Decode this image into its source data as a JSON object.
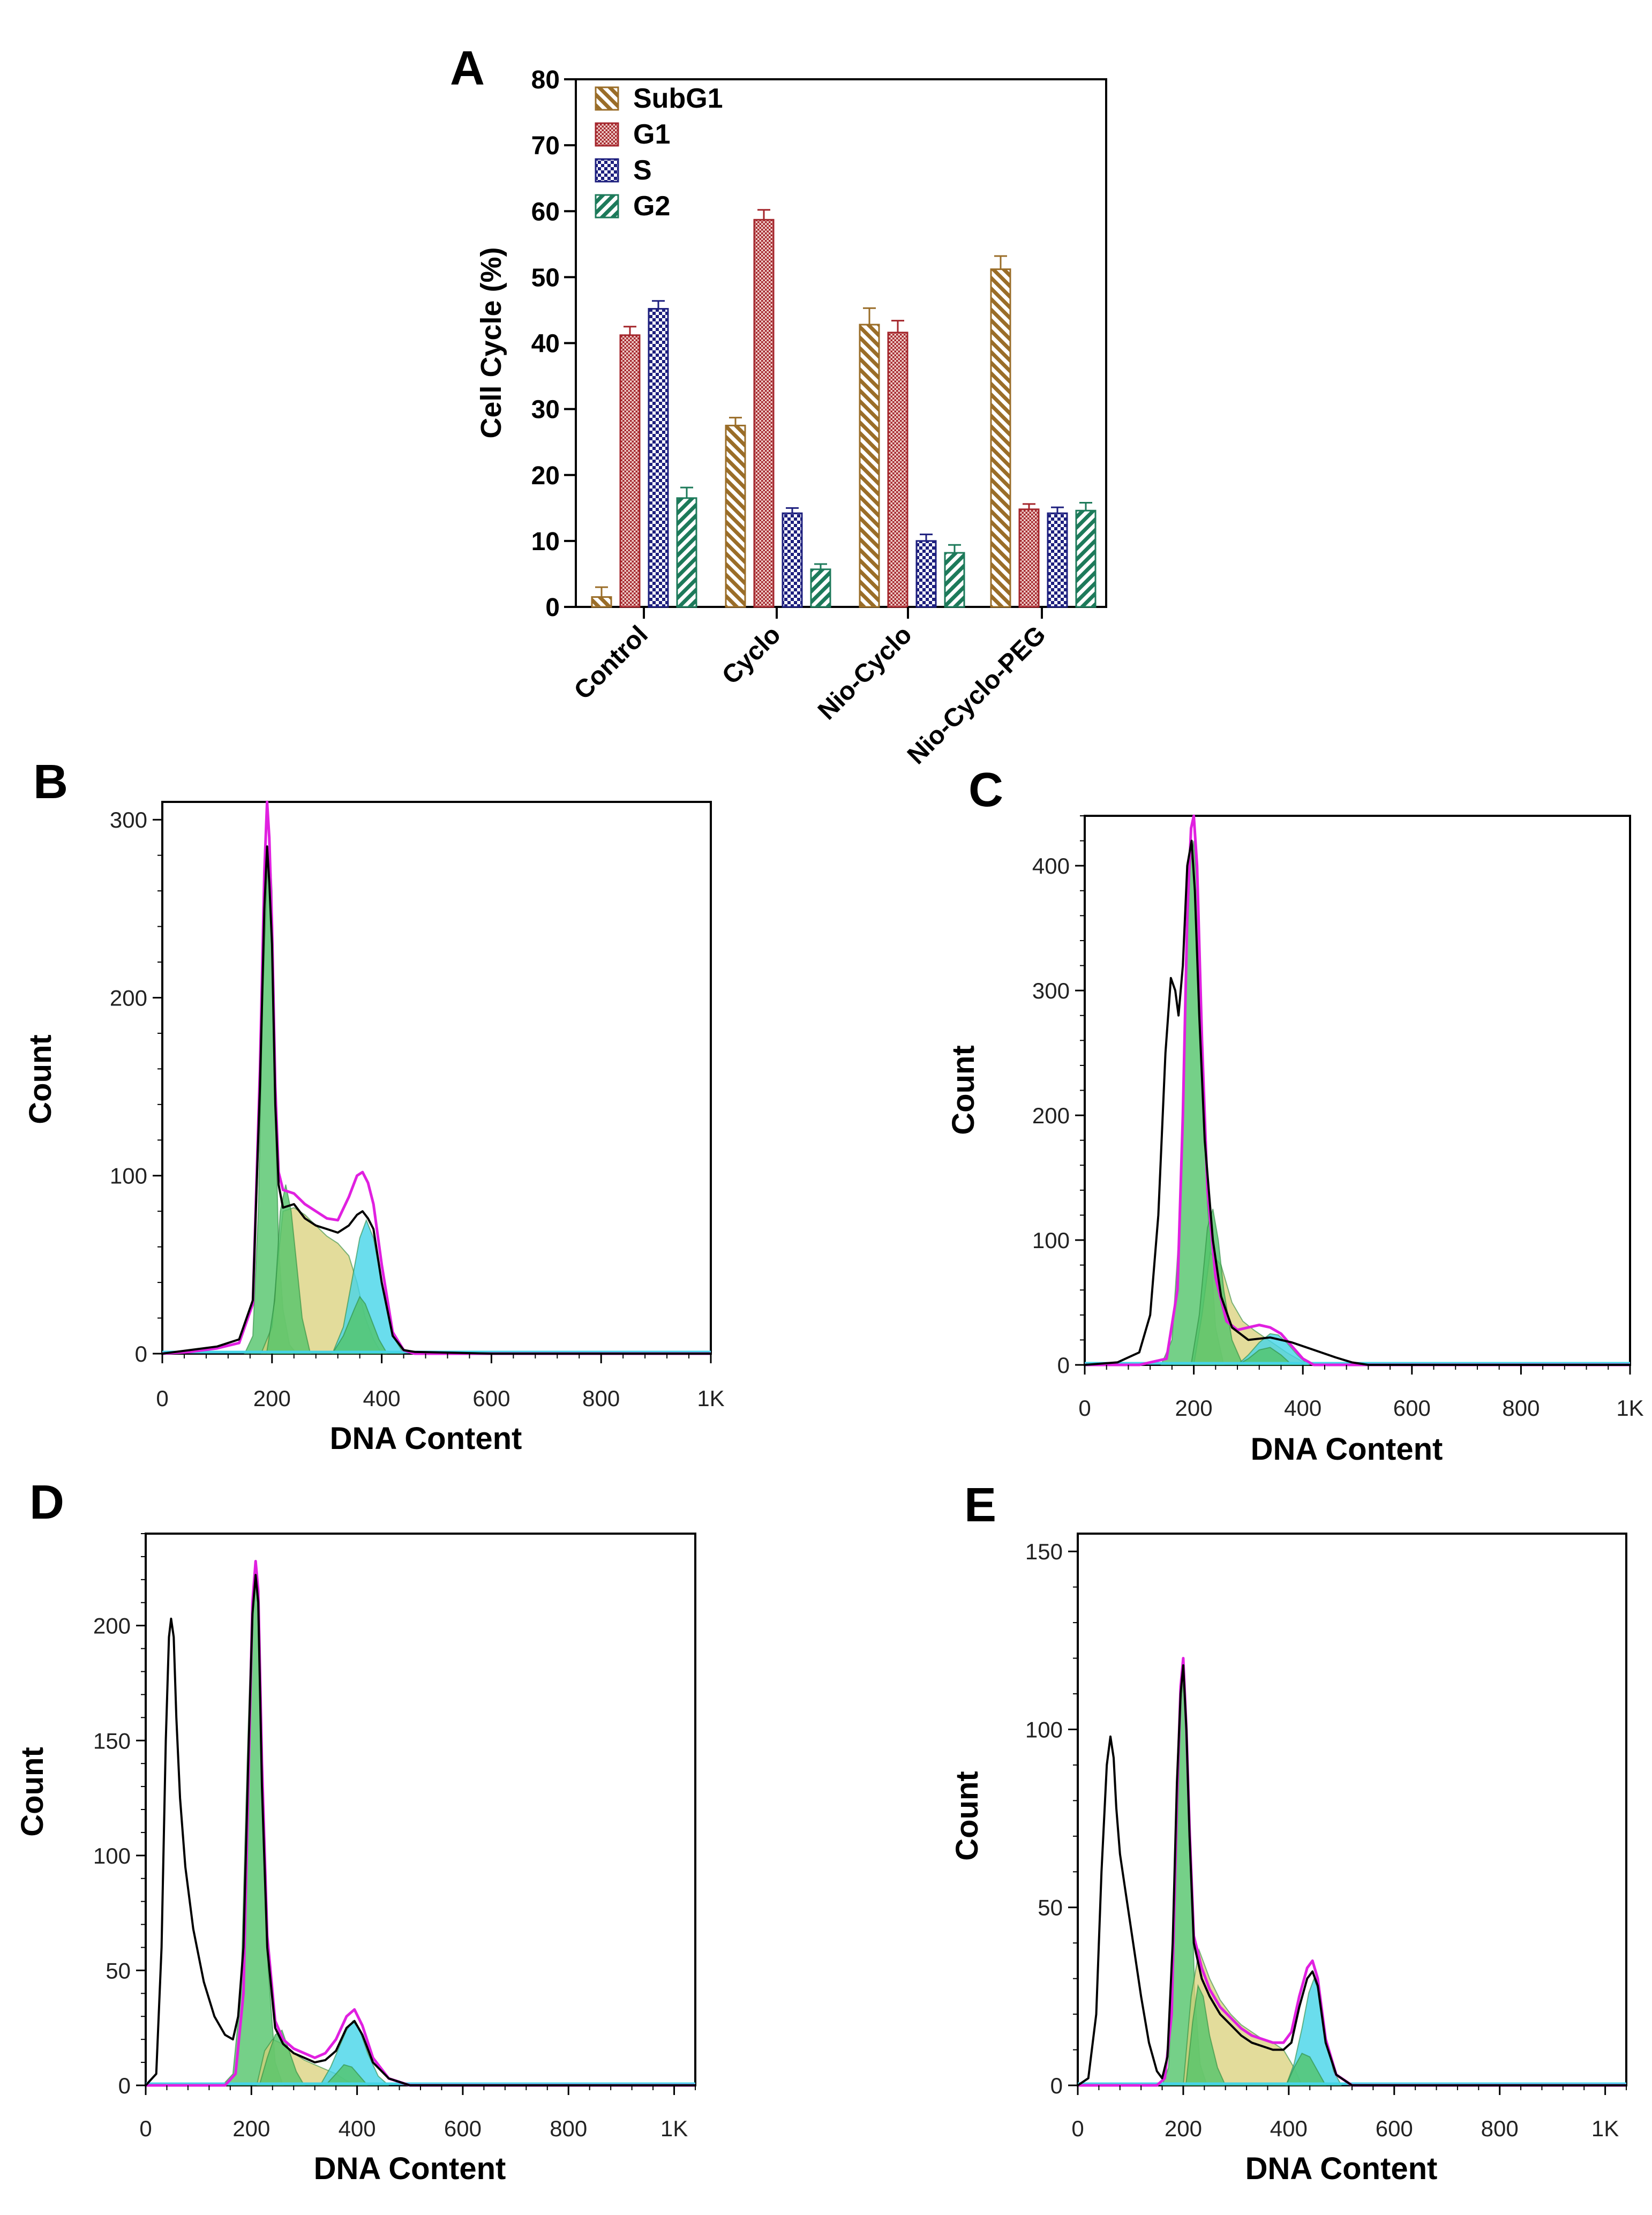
{
  "colors": {
    "subg1": "#9a6d28",
    "g1": "#a4262c",
    "s": "#1d1f7e",
    "g2": "#1d7a5a",
    "hist_green": "#52c46a",
    "hist_yellow": "#d9d07a",
    "hist_cyan": "#45d4e8",
    "hist_fit": "#e020e0",
    "hist_raw": "#000000"
  },
  "panels": {
    "A": {
      "label": "A"
    },
    "B": {
      "label": "B"
    },
    "C": {
      "label": "C"
    },
    "D": {
      "label": "D"
    },
    "E": {
      "label": "E"
    }
  },
  "chart_data": [
    {
      "id": "A",
      "type": "bar",
      "ylabel": "Cell Cycle (%)",
      "ylim": [
        0,
        80
      ],
      "yticks": [
        "0",
        "10",
        "20",
        "30",
        "40",
        "50",
        "60",
        "70",
        "80"
      ],
      "categories": [
        "Control",
        "Cyclo",
        "Nio-Cyclo",
        "Nio-Cyclo-PEG"
      ],
      "legend_position": "top-left",
      "series": [
        {
          "name": "SubG1",
          "key": "subg1",
          "values": [
            1.5,
            27.5,
            42.8,
            51.2
          ],
          "errors": [
            1.5,
            1.2,
            2.5,
            2.0
          ]
        },
        {
          "name": "G1",
          "key": "g1",
          "values": [
            41.2,
            58.7,
            41.6,
            14.8
          ],
          "errors": [
            1.3,
            1.5,
            1.8,
            0.8
          ]
        },
        {
          "name": "S",
          "key": "s",
          "values": [
            45.2,
            14.2,
            10.0,
            14.2
          ],
          "errors": [
            1.2,
            0.8,
            1.0,
            0.9
          ]
        },
        {
          "name": "G2",
          "key": "g2",
          "values": [
            16.5,
            5.7,
            8.2,
            14.6
          ],
          "errors": [
            1.6,
            0.8,
            1.2,
            1.2
          ]
        }
      ]
    },
    {
      "id": "B",
      "type": "area",
      "xlabel": "DNA Content",
      "ylabel": "Count",
      "xlim": [
        0,
        1000
      ],
      "ylim": [
        0,
        310
      ],
      "xticks": [
        "0",
        "200",
        "400",
        "600",
        "800",
        "1K"
      ],
      "xtick_values": [
        0,
        200,
        400,
        600,
        800,
        1000
      ],
      "yticks": [
        "0",
        "100",
        "200",
        "300"
      ],
      "ytick_values": [
        0,
        100,
        200,
        300
      ],
      "raw_x": [
        0,
        50,
        100,
        140,
        165,
        178,
        186,
        191,
        195,
        200,
        206,
        212,
        220,
        240,
        260,
        280,
        300,
        320,
        340,
        355,
        365,
        375,
        385,
        400,
        420,
        440,
        460,
        600,
        800,
        1000
      ],
      "raw_y": [
        0,
        2,
        4,
        8,
        30,
        150,
        250,
        285,
        265,
        230,
        140,
        95,
        82,
        84,
        76,
        72,
        70,
        68,
        72,
        78,
        80,
        76,
        70,
        40,
        10,
        2,
        1,
        0,
        0,
        0
      ],
      "fit_x": [
        0,
        50,
        100,
        140,
        165,
        178,
        186,
        191,
        195,
        200,
        206,
        212,
        220,
        240,
        260,
        280,
        300,
        320,
        340,
        355,
        365,
        375,
        385,
        400,
        420,
        440,
        460,
        600,
        800,
        1000
      ],
      "fit_y": [
        0,
        1,
        3,
        6,
        28,
        160,
        270,
        310,
        290,
        240,
        150,
        102,
        92,
        90,
        84,
        80,
        76,
        75,
        88,
        100,
        102,
        96,
        84,
        50,
        12,
        2,
        0,
        0,
        0,
        0
      ],
      "components": [
        {
          "key": "hist_green",
          "x": [
            150,
            165,
            175,
            183,
            190,
            195,
            200,
            205,
            212,
            220,
            232,
            245
          ],
          "y": [
            0,
            10,
            80,
            200,
            260,
            290,
            260,
            150,
            60,
            25,
            5,
            0
          ]
        },
        {
          "key": "hist_yellow",
          "x": [
            180,
            200,
            210,
            220,
            240,
            260,
            280,
            300,
            320,
            340,
            355,
            370,
            385,
            400
          ],
          "y": [
            0,
            15,
            50,
            80,
            82,
            78,
            72,
            66,
            62,
            55,
            40,
            20,
            8,
            0
          ]
        },
        {
          "key": "hist_green",
          "x": [
            190,
            205,
            215,
            225,
            235,
            245,
            255,
            270
          ],
          "y": [
            0,
            30,
            80,
            95,
            80,
            50,
            20,
            0
          ]
        },
        {
          "key": "hist_cyan",
          "x": [
            310,
            330,
            345,
            360,
            372,
            385,
            400,
            420,
            440
          ],
          "y": [
            0,
            15,
            40,
            65,
            75,
            65,
            40,
            10,
            0
          ]
        },
        {
          "key": "hist_green",
          "x": [
            310,
            330,
            350,
            360,
            370,
            380,
            395,
            410
          ],
          "y": [
            0,
            10,
            25,
            32,
            28,
            20,
            8,
            0
          ]
        }
      ]
    },
    {
      "id": "C",
      "type": "area",
      "xlabel": "DNA Content",
      "ylabel": "Count",
      "xlim": [
        0,
        1000
      ],
      "ylim": [
        0,
        440
      ],
      "xticks": [
        "0",
        "200",
        "400",
        "600",
        "800",
        "1K"
      ],
      "xtick_values": [
        0,
        200,
        400,
        600,
        800,
        1000
      ],
      "yticks": [
        "0",
        "100",
        "200",
        "300",
        "400"
      ],
      "ytick_values": [
        0,
        100,
        200,
        300,
        400
      ],
      "raw_x": [
        0,
        60,
        100,
        120,
        135,
        148,
        158,
        166,
        172,
        180,
        188,
        196,
        202,
        210,
        220,
        235,
        250,
        270,
        300,
        340,
        380,
        420,
        460,
        490,
        520,
        600,
        800,
        1000
      ],
      "raw_y": [
        0,
        2,
        10,
        40,
        120,
        250,
        310,
        300,
        280,
        320,
        400,
        420,
        380,
        280,
        180,
        100,
        55,
        30,
        20,
        22,
        18,
        12,
        6,
        2,
        0,
        0,
        0,
        0
      ],
      "fit_x": [
        0,
        100,
        150,
        170,
        180,
        188,
        195,
        200,
        206,
        215,
        225,
        240,
        260,
        280,
        300,
        320,
        340,
        360,
        380,
        400,
        420,
        1000
      ],
      "fit_y": [
        0,
        0,
        5,
        60,
        200,
        360,
        430,
        440,
        400,
        260,
        140,
        70,
        35,
        28,
        30,
        32,
        30,
        25,
        15,
        5,
        0,
        0
      ],
      "components": [
        {
          "key": "hist_green",
          "x": [
            140,
            160,
            175,
            185,
            193,
            200,
            207,
            215,
            225,
            240,
            255
          ],
          "y": [
            0,
            20,
            120,
            300,
            400,
            420,
            380,
            270,
            130,
            30,
            0
          ]
        },
        {
          "key": "hist_yellow",
          "x": [
            200,
            215,
            230,
            250,
            270,
            290,
            310,
            330,
            350,
            370,
            390,
            410
          ],
          "y": [
            0,
            40,
            90,
            80,
            50,
            35,
            28,
            22,
            16,
            10,
            5,
            0
          ]
        },
        {
          "key": "hist_green",
          "x": [
            195,
            210,
            225,
            235,
            245,
            255,
            270,
            290
          ],
          "y": [
            0,
            40,
            110,
            125,
            100,
            60,
            20,
            0
          ]
        },
        {
          "key": "hist_cyan",
          "x": [
            280,
            300,
            320,
            340,
            355,
            370,
            390,
            410
          ],
          "y": [
            0,
            8,
            18,
            25,
            24,
            18,
            8,
            0
          ]
        },
        {
          "key": "hist_green",
          "x": [
            280,
            300,
            320,
            340,
            360,
            380
          ],
          "y": [
            0,
            5,
            12,
            14,
            8,
            0
          ]
        }
      ]
    },
    {
      "id": "D",
      "type": "area",
      "xlabel": "DNA Content",
      "ylabel": "Count",
      "xlim": [
        0,
        1040
      ],
      "ylim": [
        0,
        240
      ],
      "xticks": [
        "0",
        "200",
        "400",
        "600",
        "800",
        "1K"
      ],
      "xtick_values": [
        0,
        200,
        400,
        600,
        800,
        1000
      ],
      "yticks": [
        "0",
        "50",
        "100",
        "150",
        "200"
      ],
      "ytick_values": [
        0,
        50,
        100,
        150,
        200
      ],
      "raw_x": [
        0,
        20,
        30,
        38,
        44,
        48,
        53,
        58,
        65,
        75,
        90,
        110,
        130,
        150,
        165,
        175,
        185,
        195,
        202,
        208,
        213,
        220,
        230,
        245,
        260,
        280,
        300,
        320,
        340,
        360,
        380,
        395,
        410,
        430,
        460,
        500,
        600,
        800,
        1040
      ],
      "raw_y": [
        0,
        5,
        60,
        150,
        195,
        203,
        195,
        160,
        125,
        95,
        68,
        45,
        30,
        22,
        20,
        30,
        60,
        150,
        205,
        222,
        210,
        130,
        60,
        25,
        18,
        14,
        12,
        10,
        11,
        15,
        25,
        28,
        22,
        10,
        3,
        0,
        0,
        0,
        0
      ],
      "fit_x": [
        0,
        150,
        170,
        185,
        195,
        202,
        208,
        213,
        220,
        230,
        245,
        260,
        280,
        300,
        320,
        340,
        360,
        380,
        395,
        410,
        430,
        460,
        500,
        1040
      ],
      "fit_y": [
        0,
        0,
        5,
        40,
        140,
        210,
        228,
        215,
        140,
        65,
        28,
        20,
        16,
        14,
        12,
        14,
        20,
        30,
        33,
        26,
        12,
        3,
        0,
        0
      ],
      "components": [
        {
          "key": "hist_green",
          "x": [
            145,
            165,
            180,
            192,
            200,
            207,
            214,
            222,
            232,
            245,
            260
          ],
          "y": [
            0,
            5,
            40,
            140,
            200,
            222,
            205,
            130,
            50,
            10,
            0
          ]
        },
        {
          "key": "hist_yellow",
          "x": [
            210,
            225,
            240,
            260,
            280,
            300,
            320,
            340,
            360,
            380,
            400
          ],
          "y": [
            0,
            15,
            20,
            18,
            14,
            11,
            9,
            7,
            5,
            2,
            0
          ]
        },
        {
          "key": "hist_green",
          "x": [
            215,
            230,
            245,
            258,
            270,
            285,
            300
          ],
          "y": [
            0,
            12,
            22,
            24,
            16,
            6,
            0
          ]
        },
        {
          "key": "hist_cyan",
          "x": [
            330,
            350,
            365,
            380,
            392,
            405,
            420,
            440,
            460
          ],
          "y": [
            0,
            8,
            16,
            24,
            28,
            24,
            14,
            4,
            0
          ]
        },
        {
          "key": "hist_green",
          "x": [
            340,
            360,
            375,
            390,
            405,
            420
          ],
          "y": [
            0,
            5,
            9,
            8,
            4,
            0
          ]
        }
      ]
    },
    {
      "id": "E",
      "type": "area",
      "xlabel": "DNA Content",
      "ylabel": "Count",
      "xlim": [
        0,
        1040
      ],
      "ylim": [
        0,
        155
      ],
      "xticks": [
        "0",
        "200",
        "400",
        "600",
        "800",
        "1K"
      ],
      "xtick_values": [
        0,
        200,
        400,
        600,
        800,
        1000
      ],
      "yticks": [
        "0",
        "50",
        "100",
        "150"
      ],
      "ytick_values": [
        0,
        50,
        100,
        150
      ],
      "raw_x": [
        0,
        20,
        35,
        45,
        55,
        62,
        68,
        73,
        80,
        90,
        105,
        120,
        135,
        150,
        160,
        170,
        180,
        188,
        195,
        200,
        206,
        212,
        220,
        235,
        250,
        270,
        290,
        310,
        330,
        350,
        370,
        390,
        405,
        420,
        435,
        445,
        455,
        470,
        490,
        520,
        600,
        800,
        1040
      ],
      "raw_y": [
        0,
        2,
        20,
        60,
        90,
        98,
        92,
        78,
        65,
        55,
        40,
        25,
        12,
        4,
        2,
        8,
        40,
        85,
        110,
        118,
        100,
        70,
        40,
        30,
        25,
        20,
        17,
        14,
        12,
        11,
        10,
        10,
        12,
        22,
        30,
        32,
        28,
        12,
        3,
        0,
        0,
        0,
        0
      ],
      "fit_x": [
        0,
        150,
        165,
        178,
        188,
        195,
        200,
        206,
        212,
        220,
        235,
        250,
        270,
        290,
        310,
        330,
        350,
        370,
        390,
        405,
        420,
        435,
        445,
        455,
        470,
        490,
        520,
        1040
      ],
      "fit_y": [
        0,
        0,
        2,
        20,
        80,
        112,
        120,
        100,
        72,
        42,
        33,
        27,
        22,
        19,
        16,
        14,
        13,
        12,
        12,
        15,
        25,
        33,
        35,
        30,
        13,
        3,
        0,
        0
      ],
      "components": [
        {
          "key": "hist_green",
          "x": [
            160,
            172,
            182,
            190,
            196,
            201,
            207,
            214,
            222,
            232,
            245
          ],
          "y": [
            0,
            5,
            35,
            80,
            108,
            115,
            100,
            65,
            25,
            6,
            0
          ]
        },
        {
          "key": "hist_yellow",
          "x": [
            200,
            215,
            230,
            250,
            270,
            290,
            310,
            330,
            350,
            370,
            390,
            410,
            425
          ],
          "y": [
            0,
            25,
            38,
            30,
            24,
            20,
            17,
            15,
            13,
            12,
            10,
            5,
            0
          ]
        },
        {
          "key": "hist_green",
          "x": [
            205,
            218,
            228,
            238,
            250,
            265,
            280
          ],
          "y": [
            0,
            18,
            28,
            25,
            14,
            5,
            0
          ]
        },
        {
          "key": "hist_cyan",
          "x": [
            395,
            410,
            425,
            438,
            448,
            458,
            470,
            485,
            500
          ],
          "y": [
            0,
            6,
            16,
            26,
            30,
            26,
            14,
            4,
            0
          ]
        },
        {
          "key": "hist_green",
          "x": [
            395,
            410,
            425,
            440,
            455,
            470
          ],
          "y": [
            0,
            5,
            9,
            8,
            4,
            0
          ]
        }
      ]
    }
  ]
}
